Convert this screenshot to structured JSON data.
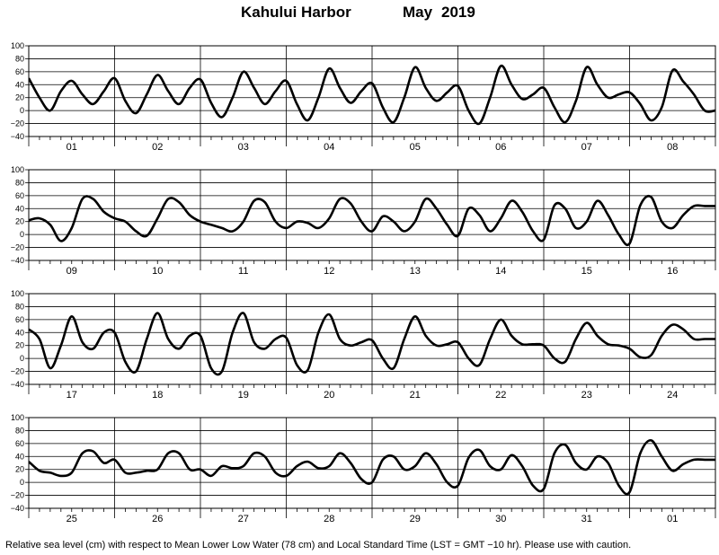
{
  "title": {
    "station": "Kahului Harbor",
    "month": "May",
    "year": "2019"
  },
  "footnote": "Relative sea level (cm) with respect to Mean Lower Low Water (78 cm) and Local Standard Time (LST = GMT −10 hr). Please use with caution.",
  "chart_data": [
    {
      "type": "line",
      "day_labels": [
        "01",
        "02",
        "03",
        "04",
        "05",
        "06",
        "07",
        "08"
      ],
      "ylim": [
        -40,
        100
      ],
      "yticks": [
        -40,
        -20,
        0,
        20,
        40,
        60,
        80,
        100
      ],
      "series": [
        {
          "hours": [
            0,
            3,
            6,
            9,
            12,
            15,
            18,
            21,
            24,
            27,
            30,
            33,
            36,
            39,
            42,
            45,
            48,
            51,
            54,
            57,
            60,
            63,
            66,
            69,
            72,
            75,
            78,
            81,
            84,
            87,
            90,
            93,
            96,
            99,
            102,
            105,
            108,
            111,
            114,
            117,
            120,
            123,
            126,
            129,
            132,
            135,
            138,
            141,
            144,
            147,
            150,
            153,
            156,
            159,
            162,
            165,
            168,
            171,
            174,
            177,
            180,
            183,
            186,
            189,
            192
          ],
          "values": [
            50,
            20,
            0,
            30,
            46,
            25,
            10,
            30,
            50,
            15,
            -4,
            25,
            55,
            30,
            10,
            35,
            48,
            12,
            -10,
            20,
            60,
            35,
            10,
            30,
            46,
            10,
            -15,
            20,
            65,
            35,
            12,
            30,
            42,
            5,
            -18,
            20,
            67,
            35,
            15,
            28,
            38,
            0,
            -20,
            20,
            69,
            40,
            18,
            25,
            35,
            5,
            -18,
            15,
            67,
            40,
            20,
            25,
            28,
            10,
            -15,
            5,
            62,
            45,
            25,
            0,
            0
          ]
        }
      ]
    },
    {
      "type": "line",
      "day_labels": [
        "09",
        "10",
        "11",
        "12",
        "13",
        "14",
        "15",
        "16"
      ],
      "ylim": [
        -40,
        100
      ],
      "yticks": [
        -40,
        -20,
        0,
        20,
        40,
        60,
        80,
        100
      ],
      "series": [
        {
          "hours": [
            0,
            3,
            6,
            9,
            12,
            15,
            18,
            21,
            24,
            27,
            30,
            33,
            36,
            39,
            42,
            45,
            48,
            51,
            54,
            57,
            60,
            63,
            66,
            69,
            72,
            75,
            78,
            81,
            84,
            87,
            90,
            93,
            96,
            99,
            102,
            105,
            108,
            111,
            114,
            117,
            120,
            123,
            126,
            129,
            132,
            135,
            138,
            141,
            144,
            147,
            150,
            153,
            156,
            159,
            162,
            165,
            168,
            171,
            174,
            177,
            180,
            183,
            186,
            189,
            192
          ],
          "values": [
            22,
            25,
            15,
            -10,
            10,
            55,
            55,
            35,
            25,
            20,
            5,
            -2,
            25,
            55,
            50,
            30,
            20,
            15,
            10,
            5,
            20,
            52,
            50,
            20,
            10,
            20,
            18,
            10,
            25,
            55,
            48,
            20,
            5,
            28,
            20,
            5,
            20,
            55,
            40,
            15,
            -2,
            40,
            30,
            5,
            25,
            52,
            35,
            5,
            -8,
            45,
            40,
            10,
            20,
            52,
            30,
            0,
            -14,
            45,
            58,
            20,
            10,
            30,
            44,
            44,
            44
          ]
        }
      ]
    },
    {
      "type": "line",
      "day_labels": [
        "17",
        "18",
        "19",
        "20",
        "21",
        "22",
        "23",
        "24"
      ],
      "ylim": [
        -40,
        100
      ],
      "yticks": [
        -40,
        -20,
        0,
        20,
        40,
        60,
        80,
        100
      ],
      "series": [
        {
          "hours": [
            0,
            3,
            6,
            9,
            12,
            15,
            18,
            21,
            24,
            27,
            30,
            33,
            36,
            39,
            42,
            45,
            48,
            51,
            54,
            57,
            60,
            63,
            66,
            69,
            72,
            75,
            78,
            81,
            84,
            87,
            90,
            93,
            96,
            99,
            102,
            105,
            108,
            111,
            114,
            117,
            120,
            123,
            126,
            129,
            132,
            135,
            138,
            141,
            144,
            147,
            150,
            153,
            156,
            159,
            162,
            165,
            168,
            171,
            174,
            177,
            180,
            183,
            186,
            189,
            192
          ],
          "values": [
            45,
            30,
            -15,
            20,
            65,
            25,
            15,
            40,
            40,
            -5,
            -20,
            30,
            70,
            30,
            15,
            35,
            35,
            -15,
            -20,
            40,
            70,
            25,
            15,
            30,
            32,
            -10,
            -18,
            40,
            68,
            30,
            20,
            25,
            28,
            0,
            -15,
            30,
            65,
            35,
            20,
            22,
            25,
            0,
            -10,
            30,
            60,
            35,
            22,
            22,
            20,
            0,
            -5,
            30,
            55,
            35,
            22,
            20,
            15,
            2,
            5,
            35,
            52,
            45,
            30,
            30,
            30
          ]
        }
      ]
    },
    {
      "type": "line",
      "day_labels": [
        "25",
        "26",
        "27",
        "28",
        "29",
        "30",
        "31",
        "01"
      ],
      "ylim": [
        -40,
        100
      ],
      "yticks": [
        -40,
        -20,
        0,
        20,
        40,
        60,
        80,
        100
      ],
      "series": [
        {
          "hours": [
            0,
            3,
            6,
            9,
            12,
            15,
            18,
            21,
            24,
            27,
            30,
            33,
            36,
            39,
            42,
            45,
            48,
            51,
            54,
            57,
            60,
            63,
            66,
            69,
            72,
            75,
            78,
            81,
            84,
            87,
            90,
            93,
            96,
            99,
            102,
            105,
            108,
            111,
            114,
            117,
            120,
            123,
            126,
            129,
            132,
            135,
            138,
            141,
            144,
            147,
            150,
            153,
            156,
            159,
            162,
            165,
            168,
            171,
            174,
            177,
            180,
            183,
            186,
            189,
            192
          ],
          "values": [
            32,
            18,
            15,
            10,
            15,
            45,
            48,
            30,
            35,
            15,
            15,
            18,
            20,
            45,
            45,
            20,
            20,
            10,
            25,
            22,
            25,
            45,
            40,
            15,
            10,
            25,
            32,
            22,
            25,
            45,
            30,
            5,
            0,
            35,
            40,
            20,
            25,
            45,
            28,
            0,
            -5,
            38,
            50,
            25,
            20,
            42,
            25,
            -5,
            -10,
            45,
            58,
            30,
            20,
            40,
            30,
            -5,
            -15,
            45,
            65,
            40,
            18,
            28,
            35,
            35,
            35
          ]
        }
      ]
    }
  ]
}
